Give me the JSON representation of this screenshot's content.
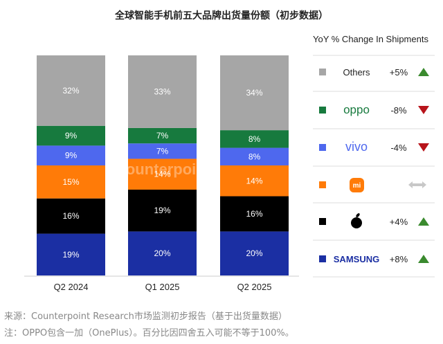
{
  "chart_data": {
    "type": "bar",
    "stacked": true,
    "title": "全球智能手机前五大品牌出货量份额（初步数据）",
    "categories": [
      "Q2 2024",
      "Q1 2025",
      "Q2 2025"
    ],
    "ylim": [
      0,
      100
    ],
    "grid": false,
    "series": [
      {
        "name": "SAMSUNG",
        "color": "#1b2fa3",
        "values": [
          19,
          20,
          20
        ],
        "yoy": "+8%",
        "trend": "up"
      },
      {
        "name": "Apple",
        "color": "#000000",
        "values": [
          16,
          19,
          16
        ],
        "yoy": "+4%",
        "trend": "up"
      },
      {
        "name": "Xiaomi",
        "color": "#ff7b08",
        "values": [
          15,
          14,
          14
        ],
        "yoy": "",
        "trend": "flat"
      },
      {
        "name": "vivo",
        "color": "#4e68ee",
        "values": [
          9,
          7,
          8
        ],
        "yoy": "-4%",
        "trend": "down"
      },
      {
        "name": "oppo",
        "color": "#177a3e",
        "values": [
          9,
          7,
          8
        ],
        "yoy": "-8%",
        "trend": "down"
      },
      {
        "name": "Others",
        "color": "#a6a6a6",
        "values": [
          32,
          33,
          34
        ],
        "yoy": "+5%",
        "trend": "up"
      }
    ],
    "data_labels": [
      [
        "19%",
        "16%",
        "15%",
        "9%",
        "9%",
        "32%"
      ],
      [
        "20%",
        "19%",
        "14%",
        "7%",
        "7%",
        "33%"
      ],
      [
        "20%",
        "16%",
        "14%",
        "8%",
        "8%",
        "34%"
      ]
    ],
    "legend_title": "YoY % Change In Shipments",
    "legend_placement": "right",
    "watermark": "Counterpoint"
  },
  "colors": {
    "up": "#3a8a2e",
    "down": "#b8141b",
    "flat": "#c8c8c8"
  },
  "footer": {
    "source": "来源：Counterpoint Research市场监测初步报告（基于出货量数据）",
    "note": "注：OPPO包含一加（OnePlus）。百分比因四舍五入可能不等于100%。"
  }
}
